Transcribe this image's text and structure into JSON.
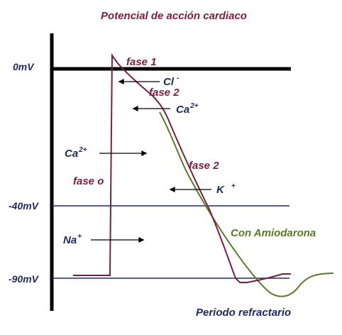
{
  "title": "Potencial de acción cardiaco",
  "axis_labels": {
    "zero": "0mV",
    "minus40": "-40mV",
    "minus90": "-90mV"
  },
  "phases": {
    "fase1": "fase 1",
    "fase2_top": "fase 2",
    "fase2_mid": "fase 2",
    "fase0": "fase o"
  },
  "ions": {
    "cl": "Cl",
    "cl_sup": "-",
    "ca_top": "Ca",
    "ca_top_sup": "2+",
    "ca_left": "Ca",
    "ca_left_sup": "2+",
    "k": "K",
    "k_sup": "+",
    "na": "Na",
    "na_sup": "+"
  },
  "annotations": {
    "amiodarone": "Con Amiodarona",
    "refractory": "Periodo refractario"
  },
  "colors": {
    "normal_curve": "#7a1f3d",
    "amiodarone_curve": "#5a7a2a",
    "axis": "#000000",
    "reference_lines": "#1f2a7a",
    "arrows": "#000000"
  }
}
